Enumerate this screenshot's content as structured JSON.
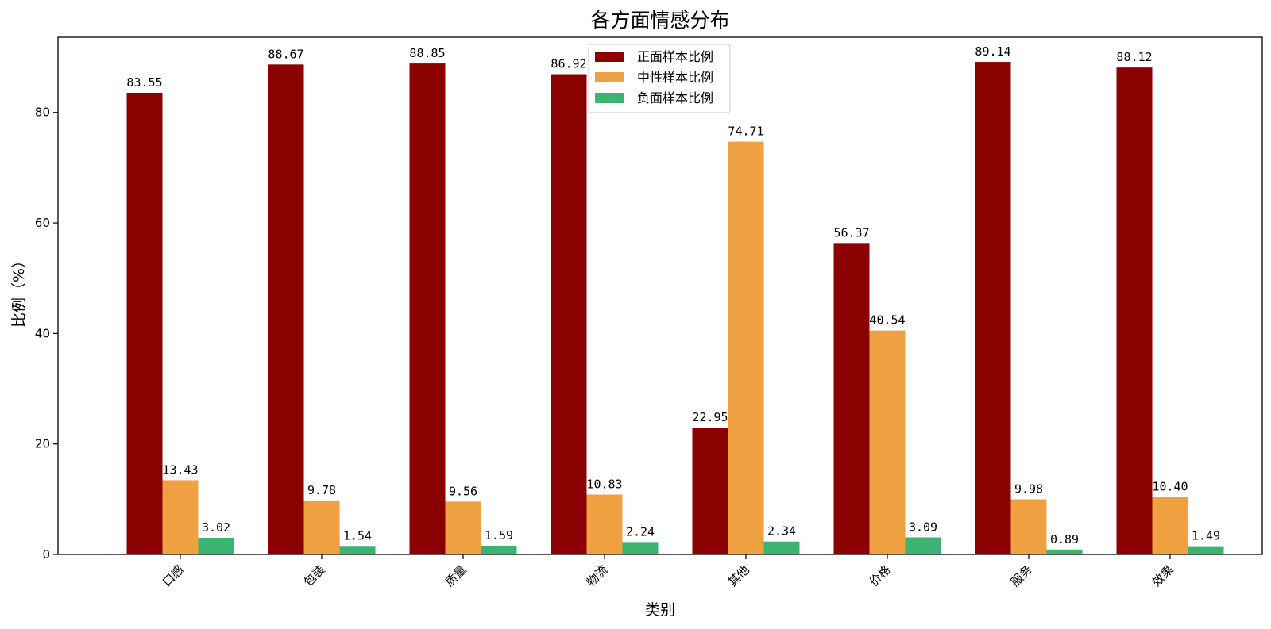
{
  "chart_data": {
    "type": "bar",
    "title": "各方面情感分布",
    "xlabel": "类别",
    "ylabel": "比例（%）",
    "categories": [
      "口感",
      "包装",
      "质量",
      "物流",
      "其他",
      "价格",
      "服务",
      "效果"
    ],
    "ylim": [
      0,
      93.6
    ],
    "yticks": [
      0,
      20,
      40,
      60,
      80
    ],
    "grid": false,
    "legend_position": "top-center",
    "series": [
      {
        "name": "正面样本比例",
        "color": "#8b0000",
        "values": [
          83.55,
          88.67,
          88.85,
          86.92,
          22.95,
          56.37,
          89.14,
          88.12
        ],
        "labels": [
          "83.55",
          "88.67",
          "88.85",
          "86.92",
          "22.95",
          "56.37",
          "89.14",
          "88.12"
        ]
      },
      {
        "name": "中性样本比例",
        "color": "#efa142",
        "values": [
          13.43,
          9.78,
          9.56,
          10.83,
          74.71,
          40.54,
          9.98,
          10.4
        ],
        "labels": [
          "13.43",
          "9.78",
          "9.56",
          "10.83",
          "74.71",
          "40.54",
          "9.98",
          "10.40"
        ]
      },
      {
        "name": "负面样本比例",
        "color": "#3cb371",
        "values": [
          3.02,
          1.54,
          1.59,
          2.24,
          2.34,
          3.09,
          0.89,
          1.49
        ],
        "labels": [
          "3.02",
          "1.54",
          "1.59",
          "2.24",
          "2.34",
          "3.09",
          "0.89",
          "1.49"
        ]
      }
    ]
  }
}
